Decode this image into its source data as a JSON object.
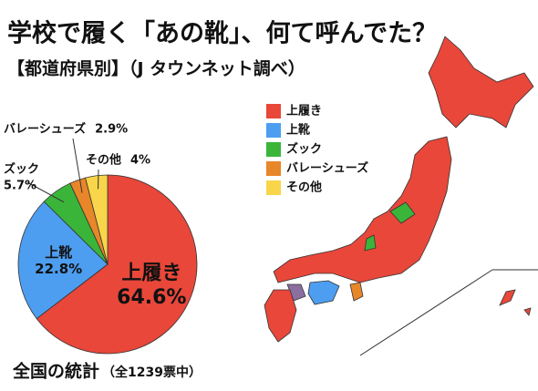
{
  "chart_data": {
    "type": "pie",
    "title": "学校で履く「あの靴」、何て呼んでた？",
    "subtitle": "【都道府県別】（J タウンネット調べ）",
    "footer": "全国の統計",
    "footer_note": "（全1239票中）",
    "categories": [
      "上履き",
      "上靴",
      "ズック",
      "バレーシューズ",
      "その他"
    ],
    "values": [
      64.6,
      22.8,
      5.7,
      2.9,
      4
    ],
    "value_labels": [
      "64.6%",
      "22.8%",
      "5.7%",
      "2.9%",
      "4%"
    ],
    "colors": [
      "#e8473a",
      "#4d9ef0",
      "#3ab53a",
      "#e8862a",
      "#f8d54a"
    ]
  }
}
